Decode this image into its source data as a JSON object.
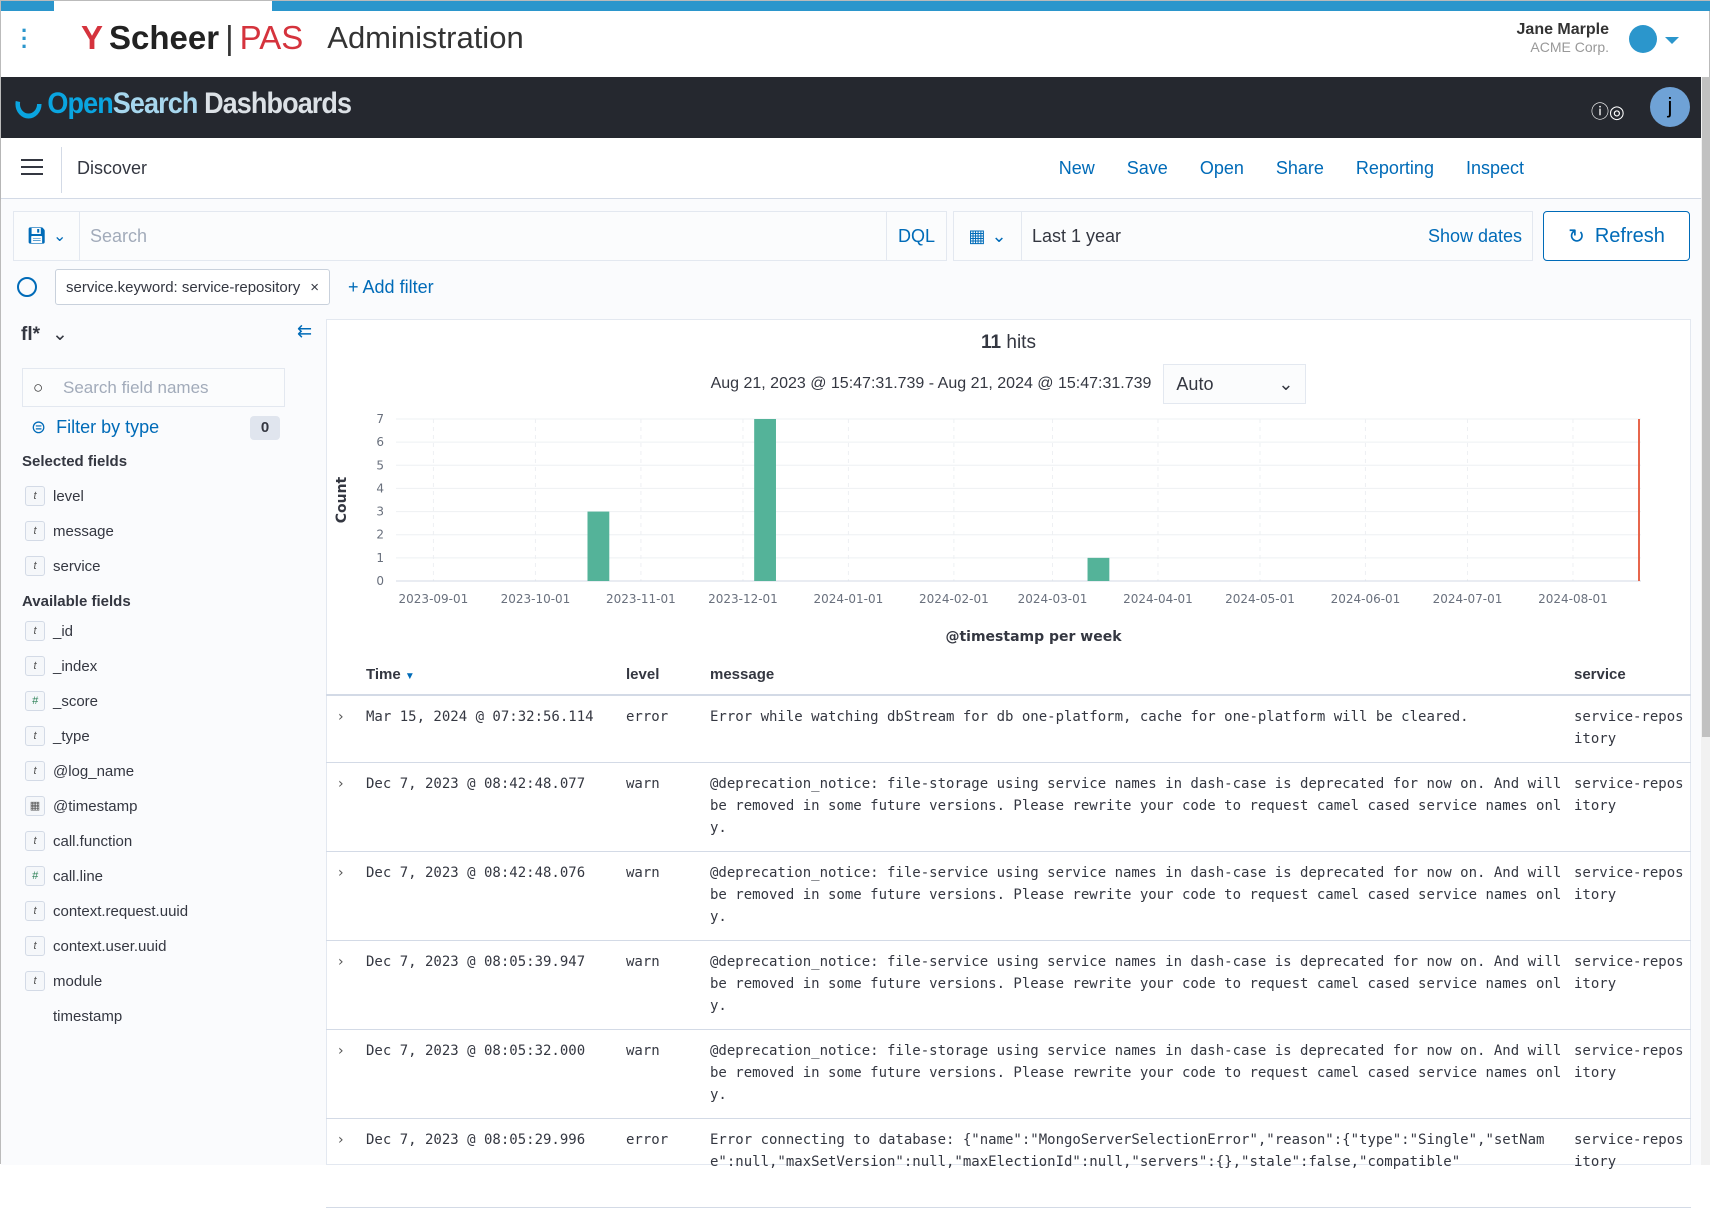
{
  "scheer": {
    "brand": "Scheer",
    "product": "PAS",
    "section": "Administration",
    "user_name": "Jane Marple",
    "user_org": "ACME Corp."
  },
  "osd": {
    "logo_a": "Open",
    "logo_b": "Search",
    "logo_c": "Dashboards",
    "avatar": "j"
  },
  "discover": {
    "title": "Discover",
    "menu": [
      "New",
      "Save",
      "Open",
      "Share",
      "Reporting",
      "Inspect"
    ]
  },
  "query": {
    "placeholder": "Search",
    "language": "DQL",
    "time_range": "Last 1 year",
    "show_dates": "Show dates",
    "refresh": "Refresh"
  },
  "filters": {
    "pill": "service.keyword: service-repository",
    "add": "+ Add filter"
  },
  "sidebar": {
    "index_pattern": "fl*",
    "search_placeholder": "Search field names",
    "filter_by_type": "Filter by type",
    "filter_count": "0",
    "selected_title": "Selected fields",
    "available_title": "Available fields",
    "selected": [
      {
        "name": "level",
        "type": "t"
      },
      {
        "name": "message",
        "type": "t"
      },
      {
        "name": "service",
        "type": "t"
      }
    ],
    "available": [
      {
        "name": "_id",
        "type": "t"
      },
      {
        "name": "_index",
        "type": "t"
      },
      {
        "name": "_score",
        "type": "#"
      },
      {
        "name": "_type",
        "type": "t"
      },
      {
        "name": "@log_name",
        "type": "t"
      },
      {
        "name": "@timestamp",
        "type": "date"
      },
      {
        "name": "call.function",
        "type": "t"
      },
      {
        "name": "call.line",
        "type": "#"
      },
      {
        "name": "context.request.uuid",
        "type": "t"
      },
      {
        "name": "context.user.uuid",
        "type": "t"
      },
      {
        "name": "module",
        "type": "t"
      },
      {
        "name": "timestamp",
        "type": ""
      }
    ]
  },
  "results": {
    "hits_count": "11",
    "hits_label": "hits",
    "date_range": "Aug 21, 2023 @ 15:47:31.739 - Aug 21, 2024 @ 15:47:31.739",
    "interval": "Auto"
  },
  "chart_data": {
    "type": "bar",
    "xlabel": "@timestamp per week",
    "ylabel": "Count",
    "ylim": [
      0,
      7
    ],
    "xlim": [
      "2023-08-21",
      "2024-08-21"
    ],
    "yticks": [
      0,
      1,
      2,
      3,
      4,
      5,
      6,
      7
    ],
    "xticks": [
      "2023-09-01",
      "2023-10-01",
      "2023-11-01",
      "2023-12-01",
      "2024-01-01",
      "2024-02-01",
      "2024-03-01",
      "2024-04-01",
      "2024-05-01",
      "2024-06-01",
      "2024-07-01",
      "2024-08-01"
    ],
    "x": [
      "2023-10-16",
      "2023-12-04",
      "2024-03-11"
    ],
    "values": [
      3,
      7,
      1
    ],
    "bar_color": "#54b399",
    "now_marker": "2024-08-21",
    "grid": true
  },
  "table": {
    "columns": [
      "Time",
      "level",
      "message",
      "service"
    ],
    "rows": [
      {
        "time": "Mar 15, 2024 @ 07:32:56.114",
        "level": "error",
        "message": "Error while watching dbStream for db one-platform, cache for one-platform will be cleared.",
        "service": "service-repository"
      },
      {
        "time": "Dec 7, 2023 @ 08:42:48.077",
        "level": "warn",
        "message": "@deprecation_notice: file-storage using service names in dash-case is deprecated for now on. And will be removed in some future versions. Please rewrite your code to request camel cased service names only.",
        "service": "service-repository"
      },
      {
        "time": "Dec 7, 2023 @ 08:42:48.076",
        "level": "warn",
        "message": "@deprecation_notice: file-service using service names in dash-case is deprecated for now on. And will be removed in some future versions. Please rewrite your code to request camel cased service names only.",
        "service": "service-repository"
      },
      {
        "time": "Dec 7, 2023 @ 08:05:39.947",
        "level": "warn",
        "message": "@deprecation_notice: file-service using service names in dash-case is deprecated for now on. And will be removed in some future versions. Please rewrite your code to request camel cased service names only.",
        "service": "service-repository"
      },
      {
        "time": "Dec 7, 2023 @ 08:05:32.000",
        "level": "warn",
        "message": "@deprecation_notice: file-storage using service names in dash-case is deprecated for now on. And will be removed in some future versions. Please rewrite your code to request camel cased service names only.",
        "service": "service-repository"
      },
      {
        "time": "Dec 7, 2023 @ 08:05:29.996",
        "level": "error",
        "message": "Error connecting to database: {\"name\":\"MongoServerSelectionError\",\"reason\":{\"type\":\"Single\",\"setName\":null,\"maxSetVersion\":null,\"maxElectionId\":null,\"servers\":{},\"stale\":false,\"compatible\"",
        "service": "service-repository"
      }
    ]
  }
}
